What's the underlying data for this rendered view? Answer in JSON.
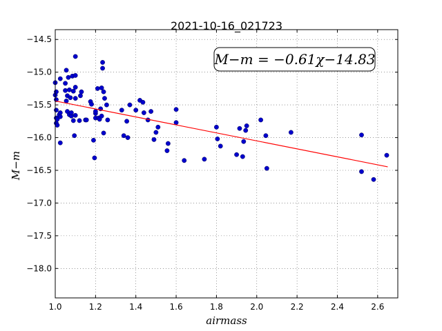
{
  "chart_data": {
    "type": "scatter",
    "title": "2021-10-16_021723",
    "xlabel": "airmass",
    "ylabel": "M−m",
    "xlim": [
      1.0,
      2.7
    ],
    "ylim": [
      -18.45,
      -14.35
    ],
    "y_inverted": true,
    "grid": true,
    "xticks": [
      1.0,
      1.2,
      1.4,
      1.6,
      1.8,
      2.0,
      2.2,
      2.4,
      2.6
    ],
    "xtick_labels": [
      "1.0",
      "1.2",
      "1.4",
      "1.6",
      "1.8",
      "2.0",
      "2.2",
      "2.4",
      "2.6"
    ],
    "yticks": [
      -14.5,
      -15.0,
      -15.5,
      -16.0,
      -16.5,
      -17.0,
      -17.5,
      -18.0
    ],
    "ytick_labels": [
      "−14.5",
      "−15.0",
      "−15.5",
      "−16.0",
      "−16.5",
      "−17.0",
      "−17.5",
      "−18.0"
    ],
    "annotation": "M−m = −0.61χ−14.83",
    "fit": {
      "slope": -0.61,
      "intercept": -14.83,
      "x_range": [
        1.0,
        2.65
      ],
      "color": "#ff0000"
    },
    "marker_color": "#0000cc",
    "points": [
      [
        1.0,
        -15.16
      ],
      [
        1.0,
        -15.35
      ],
      [
        1.005,
        -15.3
      ],
      [
        1.005,
        -15.42
      ],
      [
        1.005,
        -15.58
      ],
      [
        1.005,
        -15.7
      ],
      [
        1.005,
        -15.78
      ],
      [
        1.01,
        -15.81
      ],
      [
        1.01,
        -15.72
      ],
      [
        1.02,
        -15.65
      ],
      [
        1.025,
        -15.1
      ],
      [
        1.025,
        -15.62
      ],
      [
        1.025,
        -15.68
      ],
      [
        1.025,
        -16.08
      ],
      [
        1.05,
        -15.28
      ],
      [
        1.05,
        -15.17
      ],
      [
        1.055,
        -14.97
      ],
      [
        1.055,
        -15.44
      ],
      [
        1.06,
        -15.36
      ],
      [
        1.06,
        -15.6
      ],
      [
        1.065,
        -15.08
      ],
      [
        1.07,
        -15.65
      ],
      [
        1.07,
        -15.27
      ],
      [
        1.075,
        -15.39
      ],
      [
        1.08,
        -15.67
      ],
      [
        1.08,
        -15.62
      ],
      [
        1.085,
        -15.06
      ],
      [
        1.09,
        -15.29
      ],
      [
        1.09,
        -15.74
      ],
      [
        1.095,
        -15.97
      ],
      [
        1.1,
        -14.76
      ],
      [
        1.1,
        -15.05
      ],
      [
        1.1,
        -15.4
      ],
      [
        1.1,
        -15.66
      ],
      [
        1.1,
        -15.23
      ],
      [
        1.12,
        -15.74
      ],
      [
        1.125,
        -15.36
      ],
      [
        1.13,
        -15.3
      ],
      [
        1.15,
        -15.73
      ],
      [
        1.155,
        -15.73
      ],
      [
        1.175,
        -15.45
      ],
      [
        1.18,
        -15.49
      ],
      [
        1.19,
        -16.04
      ],
      [
        1.195,
        -16.31
      ],
      [
        1.2,
        -15.7
      ],
      [
        1.2,
        -15.63
      ],
      [
        1.2,
        -15.6
      ],
      [
        1.21,
        -15.25
      ],
      [
        1.215,
        -15.7
      ],
      [
        1.22,
        -15.72
      ],
      [
        1.225,
        -15.56
      ],
      [
        1.23,
        -15.67
      ],
      [
        1.23,
        -15.24
      ],
      [
        1.235,
        -14.85
      ],
      [
        1.235,
        -14.94
      ],
      [
        1.24,
        -15.3
      ],
      [
        1.24,
        -15.93
      ],
      [
        1.245,
        -15.4
      ],
      [
        1.255,
        -15.5
      ],
      [
        1.26,
        -15.73
      ],
      [
        1.33,
        -15.58
      ],
      [
        1.34,
        -15.97
      ],
      [
        1.355,
        -15.75
      ],
      [
        1.36,
        -16.0
      ],
      [
        1.37,
        -15.5
      ],
      [
        1.4,
        -15.58
      ],
      [
        1.42,
        -15.43
      ],
      [
        1.435,
        -15.46
      ],
      [
        1.44,
        -15.62
      ],
      [
        1.46,
        -15.73
      ],
      [
        1.475,
        -15.6
      ],
      [
        1.49,
        -16.03
      ],
      [
        1.5,
        -15.92
      ],
      [
        1.51,
        -15.84
      ],
      [
        1.555,
        -16.2
      ],
      [
        1.56,
        -16.09
      ],
      [
        1.6,
        -15.57
      ],
      [
        1.6,
        -15.77
      ],
      [
        1.64,
        -16.35
      ],
      [
        1.74,
        -16.33
      ],
      [
        1.8,
        -15.84
      ],
      [
        1.805,
        -16.02
      ],
      [
        1.82,
        -16.13
      ],
      [
        1.9,
        -16.26
      ],
      [
        1.915,
        -15.86
      ],
      [
        1.93,
        -16.29
      ],
      [
        1.935,
        -16.06
      ],
      [
        1.945,
        -15.89
      ],
      [
        1.95,
        -15.82
      ],
      [
        2.02,
        -15.73
      ],
      [
        2.045,
        -15.97
      ],
      [
        2.05,
        -16.47
      ],
      [
        2.17,
        -15.92
      ],
      [
        2.52,
        -15.96
      ],
      [
        2.52,
        -16.52
      ],
      [
        2.58,
        -16.64
      ],
      [
        2.645,
        -16.27
      ]
    ]
  }
}
